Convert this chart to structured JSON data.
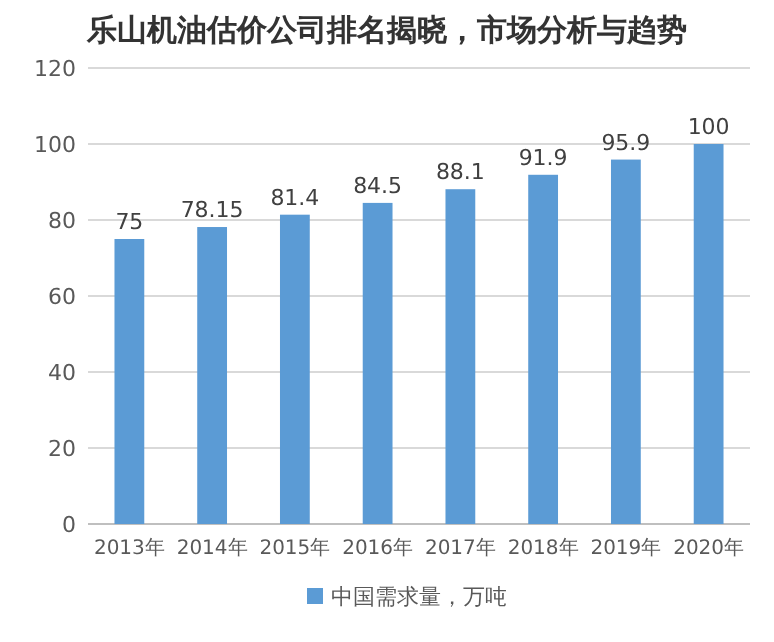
{
  "chart_data": {
    "type": "bar",
    "title": "乐山机油估价公司排名揭晓，市场分析与趋势",
    "categories": [
      "2013年",
      "2014年",
      "2015年",
      "2016年",
      "2017年",
      "2018年",
      "2019年",
      "2020年"
    ],
    "series": [
      {
        "name": "中国需求量，万吨",
        "color": "#5b9bd5",
        "values": [
          75,
          78.15,
          81.4,
          84.5,
          88.1,
          91.9,
          95.9,
          100
        ]
      }
    ],
    "ylim": [
      0,
      120
    ],
    "yticks": [
      0,
      20,
      40,
      60,
      80,
      100,
      120
    ],
    "grid": "y",
    "legend": "bottom",
    "data_labels": true
  }
}
